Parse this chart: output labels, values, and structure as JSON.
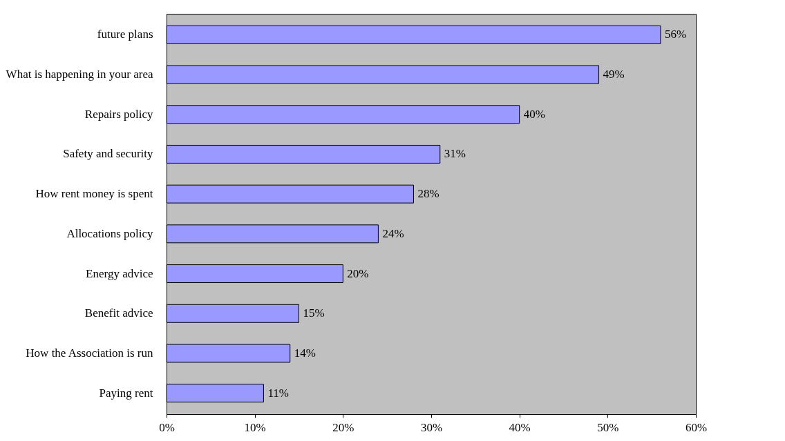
{
  "chart_data": {
    "type": "bar",
    "orientation": "horizontal",
    "categories": [
      "future plans",
      "What is happening in your area",
      "Repairs policy",
      "Safety and security",
      "How rent money is spent",
      "Allocations policy",
      "Energy advice",
      "Benefit advice",
      "How the Association is run",
      "Paying rent"
    ],
    "values": [
      56,
      49,
      40,
      31,
      28,
      24,
      20,
      15,
      14,
      11
    ],
    "value_labels": [
      "56%",
      "49%",
      "40%",
      "31%",
      "28%",
      "24%",
      "20%",
      "15%",
      "14%",
      "11%"
    ],
    "color": "#9999ff",
    "xlim": [
      0,
      60
    ],
    "xticks": [
      {
        "value": 0,
        "label": "0%"
      },
      {
        "value": 10,
        "label": "10%"
      },
      {
        "value": 20,
        "label": "20%"
      },
      {
        "value": 30,
        "label": "30%"
      },
      {
        "value": 40,
        "label": "40%"
      },
      {
        "value": 50,
        "label": "50%"
      },
      {
        "value": 60,
        "label": "60%"
      }
    ],
    "grid": false
  }
}
